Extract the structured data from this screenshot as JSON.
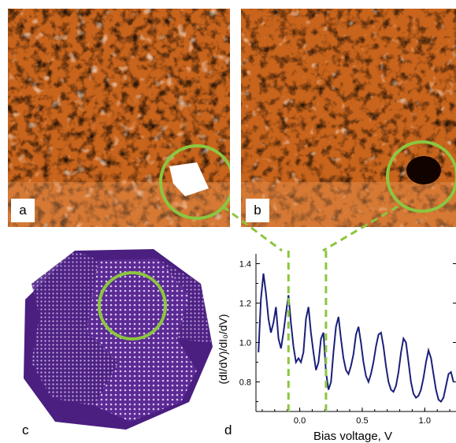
{
  "figure": {
    "panel_labels": {
      "a": "a",
      "b": "b",
      "c": "c",
      "d": "d"
    },
    "highlight_color": "#8cc63f",
    "stm_colors": {
      "base": "#c05a14",
      "dark": "#2a0a02",
      "light": "#ffffff"
    },
    "nanoparticle_color": "#5b2a94"
  },
  "chart_data": {
    "type": "line",
    "xlabel": "Bias voltage, V",
    "ylabel": "(dI/dV)/dI₀/dV)",
    "xlim": [
      -0.35,
      1.25
    ],
    "ylim": [
      0.65,
      1.45
    ],
    "xticks": [
      "0.0",
      "0.5",
      "1.0"
    ],
    "xtick_values": [
      0.0,
      0.5,
      1.0
    ],
    "yticks": [
      "0.8",
      "1.0",
      "1.2",
      "1.4"
    ],
    "ytick_values": [
      0.8,
      1.0,
      1.2,
      1.4
    ],
    "series": [
      {
        "color": "#1b1f7a",
        "x": [
          -0.33,
          -0.31,
          -0.29,
          -0.27,
          -0.25,
          -0.23,
          -0.21,
          -0.19,
          -0.17,
          -0.15,
          -0.13,
          -0.11,
          -0.09,
          -0.07,
          -0.05,
          -0.03,
          -0.01,
          0.01,
          0.03,
          0.05,
          0.07,
          0.09,
          0.11,
          0.13,
          0.15,
          0.17,
          0.19,
          0.21,
          0.23,
          0.25,
          0.27,
          0.29,
          0.31,
          0.33,
          0.35,
          0.37,
          0.39,
          0.41,
          0.43,
          0.45,
          0.47,
          0.49,
          0.51,
          0.53,
          0.55,
          0.57,
          0.59,
          0.61,
          0.63,
          0.65,
          0.67,
          0.69,
          0.71,
          0.73,
          0.75,
          0.77,
          0.79,
          0.81,
          0.83,
          0.85,
          0.87,
          0.89,
          0.91,
          0.93,
          0.95,
          0.97,
          0.99,
          1.01,
          1.03,
          1.05,
          1.07,
          1.09,
          1.11,
          1.13,
          1.15,
          1.17,
          1.19,
          1.21,
          1.23
        ],
        "y": [
          0.95,
          1.22,
          1.35,
          1.25,
          1.12,
          1.05,
          1.1,
          1.18,
          1.02,
          0.97,
          1.05,
          1.15,
          1.24,
          1.1,
          0.98,
          0.9,
          0.92,
          0.9,
          0.95,
          1.12,
          1.18,
          1.05,
          0.95,
          0.86,
          0.9,
          1.02,
          1.05,
          0.85,
          0.76,
          0.8,
          0.95,
          1.08,
          1.13,
          1.02,
          0.92,
          0.86,
          0.84,
          0.88,
          0.94,
          1.04,
          1.08,
          1.0,
          0.9,
          0.83,
          0.8,
          0.84,
          0.9,
          0.98,
          1.04,
          1.05,
          0.98,
          0.88,
          0.8,
          0.76,
          0.75,
          0.78,
          0.85,
          0.95,
          1.02,
          1.0,
          0.9,
          0.8,
          0.74,
          0.72,
          0.73,
          0.76,
          0.82,
          0.9,
          0.96,
          0.92,
          0.84,
          0.76,
          0.71,
          0.7,
          0.72,
          0.78,
          0.84,
          0.85,
          0.8
        ]
      }
    ],
    "markers": [
      {
        "x": -0.09,
        "color": "#8cc63f",
        "style": "dashed"
      },
      {
        "x": 0.21,
        "color": "#8cc63f",
        "style": "dashed"
      }
    ],
    "grid": false
  }
}
